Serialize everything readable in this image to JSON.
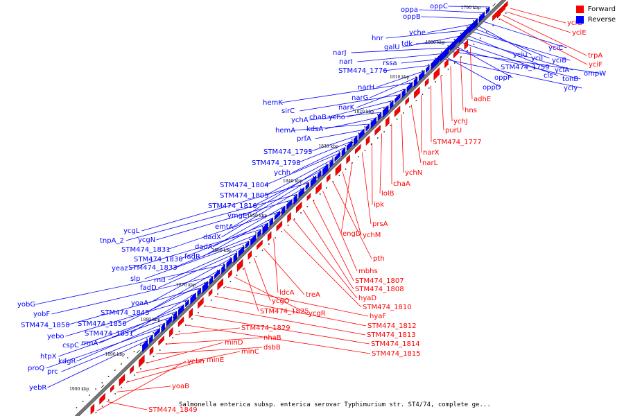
{
  "caption": "Salmonella enterica subsp. enterica serovar Typhimurium str. ST4/74, complete ge...",
  "legend": {
    "forward_label": "Forward",
    "reverse_label": "Reverse",
    "forward_color": "#ff0000",
    "reverse_color": "#0000ff"
  },
  "ticks": [
    "1790 kbp",
    "1800 kbp",
    "1810 kbp",
    "1820 kbp",
    "1830 kbp",
    "1840 kbp",
    "1850 kbp",
    "1860 kbp",
    "1870 kbp",
    "1880 kbp",
    "1890 kbp",
    "1900 kbp"
  ],
  "reverse_genes": [
    "oppC",
    "oppa",
    "oppB",
    "yche",
    "hnr",
    "galU",
    "tdk",
    "narJ",
    "narI",
    "rssa",
    "STM474_1776",
    "narH",
    "narG",
    "hemK",
    "narK",
    "sirC",
    "chaB",
    "ycho",
    "ychA",
    "kdsA",
    "hemA",
    "prfA",
    "STM474_1795",
    "STM474_1798",
    "ychh",
    "STM474_1804",
    "STM474_1805",
    "ymgE",
    "STM474_1816",
    "emtA",
    "ycgL",
    "dadX",
    "tnpA_2",
    "ycgN",
    "dadA",
    "STM474_1831",
    "fadR",
    "STM474_1830",
    "yeaz",
    "STM474_1833",
    "slp",
    "rnd",
    "fadD",
    "yoaA",
    "yobG",
    "STM474_1845",
    "yobF",
    "STM474_1850",
    "STM474_1858",
    "STM474_1851",
    "yebo",
    "rrmA",
    "cspC",
    "htpX",
    "kdgR",
    "proQ",
    "prc",
    "yebR",
    "yciC",
    "yciu",
    "yciI",
    "yciB",
    "STM474_1759",
    "yciA",
    "cls",
    "oppF",
    "tonB",
    "ompW",
    "oppD",
    "yciy"
  ],
  "forward_genes": [
    "yciG",
    "yciE",
    "trpA",
    "yciF",
    "adhE",
    "hns",
    "ychJ",
    "purU",
    "STM474_1777",
    "narX",
    "narL",
    "ychN",
    "chaA",
    "lolB",
    "ipk",
    "prsA",
    "engD",
    "ychM",
    "pth",
    "mbhs",
    "STM474_1807",
    "STM474_1808",
    "hyaD",
    "STM474_1810",
    "ldcA",
    "treA",
    "ycgO",
    "STM474_1825",
    "ycgR",
    "hyaF",
    "STM474_1812",
    "STM474_1813",
    "STM474_1814",
    "STM474_1815",
    "STM474_1829",
    "nhaB",
    "dsbB",
    "minD",
    "minC",
    "minE",
    "yoaB",
    "STM474_1849",
    "yebn"
  ]
}
